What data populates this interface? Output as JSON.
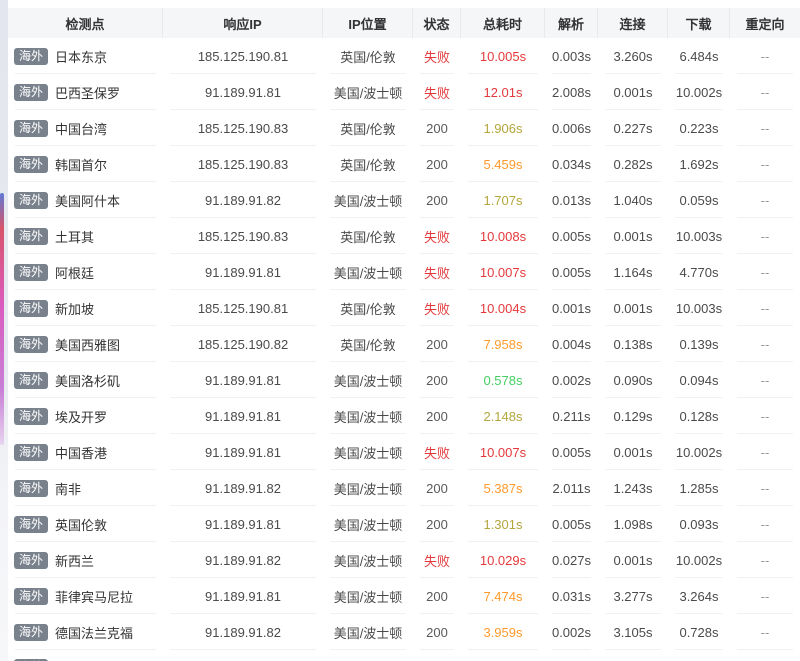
{
  "colors": {
    "fail_red": "#e4393c",
    "time_orange": "#ff9a2b",
    "time_olive": "#b3a63c",
    "time_green": "#45cf63",
    "badge_bg": "#79828c",
    "header_bg": "#f5f6f8"
  },
  "table": {
    "badge_label": "海外",
    "columns": [
      {
        "key": "node",
        "label": "检测点",
        "width": 155
      },
      {
        "key": "ip",
        "label": "响应IP",
        "width": 160
      },
      {
        "key": "location",
        "label": "IP位置",
        "width": 90
      },
      {
        "key": "status",
        "label": "状态",
        "width": 48
      },
      {
        "key": "total",
        "label": "总耗时",
        "width": 84
      },
      {
        "key": "dns",
        "label": "解析",
        "width": 53
      },
      {
        "key": "connect",
        "label": "连接",
        "width": 70
      },
      {
        "key": "download",
        "label": "下载",
        "width": 62
      },
      {
        "key": "redirect",
        "label": "重定向",
        "width": 70
      }
    ],
    "rows": [
      {
        "node": "日本东京",
        "ip": "185.125.190.81",
        "location": "英国/伦敦",
        "status": "失败",
        "status_fail": true,
        "total": "10.005s",
        "total_color": "red",
        "dns": "0.003s",
        "connect": "3.260s",
        "download": "6.484s",
        "redirect": "--"
      },
      {
        "node": "巴西圣保罗",
        "ip": "91.189.91.81",
        "location": "美国/波士顿",
        "status": "失败",
        "status_fail": true,
        "total": "12.01s",
        "total_color": "red",
        "dns": "2.008s",
        "connect": "0.001s",
        "download": "10.002s",
        "redirect": "--"
      },
      {
        "node": "中国台湾",
        "ip": "185.125.190.83",
        "location": "英国/伦敦",
        "status": "200",
        "status_fail": false,
        "total": "1.906s",
        "total_color": "olive",
        "dns": "0.006s",
        "connect": "0.227s",
        "download": "0.223s",
        "redirect": "--"
      },
      {
        "node": "韩国首尔",
        "ip": "185.125.190.83",
        "location": "英国/伦敦",
        "status": "200",
        "status_fail": false,
        "total": "5.459s",
        "total_color": "orange",
        "dns": "0.034s",
        "connect": "0.282s",
        "download": "1.692s",
        "redirect": "--"
      },
      {
        "node": "美国阿什本",
        "ip": "91.189.91.82",
        "location": "美国/波士顿",
        "status": "200",
        "status_fail": false,
        "total": "1.707s",
        "total_color": "olive",
        "dns": "0.013s",
        "connect": "1.040s",
        "download": "0.059s",
        "redirect": "--"
      },
      {
        "node": "土耳其",
        "ip": "185.125.190.83",
        "location": "英国/伦敦",
        "status": "失败",
        "status_fail": true,
        "total": "10.008s",
        "total_color": "red",
        "dns": "0.005s",
        "connect": "0.001s",
        "download": "10.003s",
        "redirect": "--"
      },
      {
        "node": "阿根廷",
        "ip": "91.189.91.81",
        "location": "美国/波士顿",
        "status": "失败",
        "status_fail": true,
        "total": "10.007s",
        "total_color": "red",
        "dns": "0.005s",
        "connect": "1.164s",
        "download": "4.770s",
        "redirect": "--"
      },
      {
        "node": "新加坡",
        "ip": "185.125.190.81",
        "location": "英国/伦敦",
        "status": "失败",
        "status_fail": true,
        "total": "10.004s",
        "total_color": "red",
        "dns": "0.001s",
        "connect": "0.001s",
        "download": "10.003s",
        "redirect": "--"
      },
      {
        "node": "美国西雅图",
        "ip": "185.125.190.82",
        "location": "英国/伦敦",
        "status": "200",
        "status_fail": false,
        "total": "7.958s",
        "total_color": "orange",
        "dns": "0.004s",
        "connect": "0.138s",
        "download": "0.139s",
        "redirect": "--"
      },
      {
        "node": "美国洛杉矶",
        "ip": "91.189.91.81",
        "location": "美国/波士顿",
        "status": "200",
        "status_fail": false,
        "total": "0.578s",
        "total_color": "green",
        "dns": "0.002s",
        "connect": "0.090s",
        "download": "0.094s",
        "redirect": "--"
      },
      {
        "node": "埃及开罗",
        "ip": "91.189.91.81",
        "location": "美国/波士顿",
        "status": "200",
        "status_fail": false,
        "total": "2.148s",
        "total_color": "olive",
        "dns": "0.211s",
        "connect": "0.129s",
        "download": "0.128s",
        "redirect": "--"
      },
      {
        "node": "中国香港",
        "ip": "91.189.91.81",
        "location": "美国/波士顿",
        "status": "失败",
        "status_fail": true,
        "total": "10.007s",
        "total_color": "red",
        "dns": "0.005s",
        "connect": "0.001s",
        "download": "10.002s",
        "redirect": "--"
      },
      {
        "node": "南非",
        "ip": "91.189.91.82",
        "location": "美国/波士顿",
        "status": "200",
        "status_fail": false,
        "total": "5.387s",
        "total_color": "orange",
        "dns": "2.011s",
        "connect": "1.243s",
        "download": "1.285s",
        "redirect": "--"
      },
      {
        "node": "英国伦敦",
        "ip": "91.189.91.81",
        "location": "美国/波士顿",
        "status": "200",
        "status_fail": false,
        "total": "1.301s",
        "total_color": "olive",
        "dns": "0.005s",
        "connect": "1.098s",
        "download": "0.093s",
        "redirect": "--"
      },
      {
        "node": "新西兰",
        "ip": "91.189.91.82",
        "location": "美国/波士顿",
        "status": "失败",
        "status_fail": true,
        "total": "10.029s",
        "total_color": "red",
        "dns": "0.027s",
        "connect": "0.001s",
        "download": "10.002s",
        "redirect": "--"
      },
      {
        "node": "菲律宾马尼拉",
        "ip": "91.189.91.81",
        "location": "美国/波士顿",
        "status": "200",
        "status_fail": false,
        "total": "7.474s",
        "total_color": "orange",
        "dns": "0.031s",
        "connect": "3.277s",
        "download": "3.264s",
        "redirect": "--"
      },
      {
        "node": "德国法兰克福",
        "ip": "91.189.91.82",
        "location": "美国/波士顿",
        "status": "200",
        "status_fail": false,
        "total": "3.959s",
        "total_color": "orange",
        "dns": "0.002s",
        "connect": "3.105s",
        "download": "0.728s",
        "redirect": "--"
      }
    ]
  }
}
